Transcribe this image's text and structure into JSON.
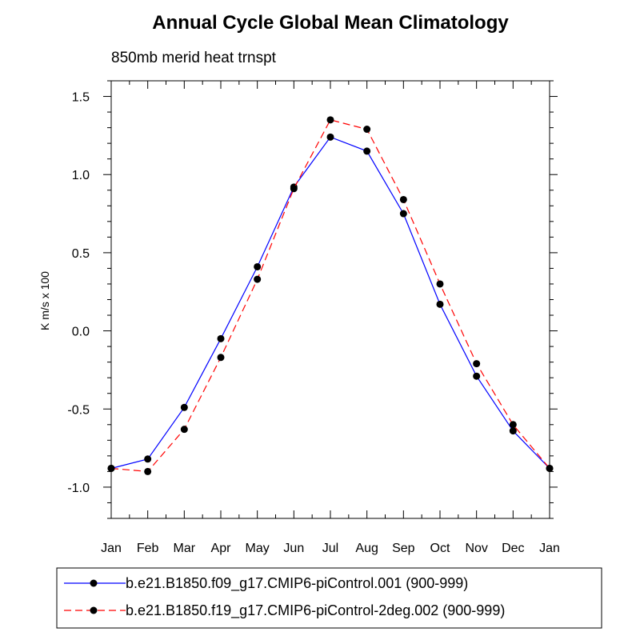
{
  "chart_data": {
    "type": "line",
    "title": "Annual Cycle Global Mean Climatology",
    "subtitle": "850mb merid heat trnspt",
    "ylabel": "K m/s x 100",
    "xlabel": "",
    "categories": [
      "Jan",
      "Feb",
      "Mar",
      "Apr",
      "May",
      "Jun",
      "Jul",
      "Aug",
      "Sep",
      "Oct",
      "Nov",
      "Dec",
      "Jan"
    ],
    "ylim": [
      -1.2,
      1.6
    ],
    "yticks": [
      -1.0,
      -0.5,
      0.0,
      0.5,
      1.0,
      1.5
    ],
    "ytick_labels": [
      "-1.0",
      "-0.5",
      "0.0",
      "0.5",
      "1.0",
      "1.5"
    ],
    "grid": false,
    "legend_position": "bottom",
    "series": [
      {
        "name": "b.e21.B1850.f09_g17.CMIP6-piControl.001 (900-999)",
        "color": "#0000ff",
        "line_style": "solid",
        "marker": "filled-circle",
        "values": [
          -0.88,
          -0.82,
          -0.49,
          -0.05,
          0.41,
          0.92,
          1.24,
          1.15,
          0.75,
          0.17,
          -0.29,
          -0.64,
          -0.88
        ]
      },
      {
        "name": "b.e21.B1850.f19_g17.CMIP6-piControl-2deg.002 (900-999)",
        "color": "#ff0000",
        "line_style": "dashed",
        "marker": "filled-circle",
        "values": [
          -0.88,
          -0.9,
          -0.63,
          -0.17,
          0.33,
          0.91,
          1.35,
          1.29,
          0.84,
          0.3,
          -0.21,
          -0.6,
          -0.88
        ]
      }
    ]
  }
}
